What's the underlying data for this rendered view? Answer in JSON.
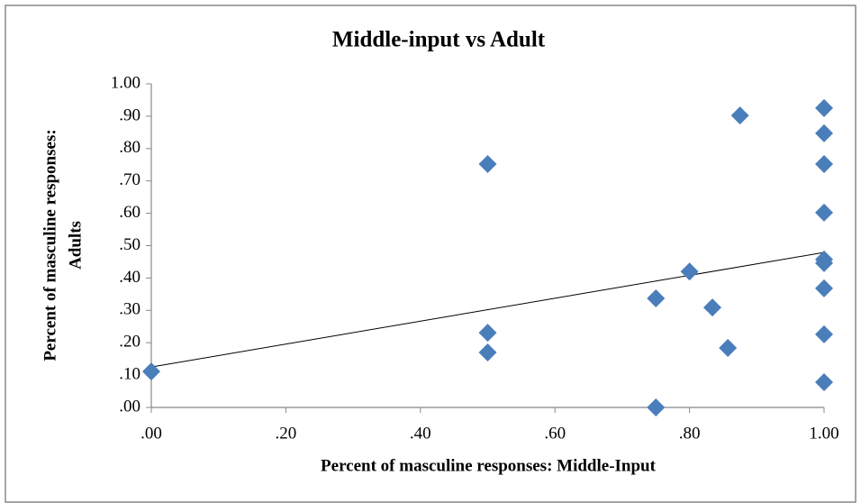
{
  "chart_data": {
    "type": "scatter",
    "title": "Middle-input vs Adult",
    "x_label": "Percent of masculine responses: Middle-Input",
    "y_label": [
      "Percent of masculine responses:",
      "Adults"
    ],
    "color": "#4a7ebb",
    "x": [
      0,
      0.5,
      0.5,
      0.5,
      0.75,
      0.75,
      0.8,
      0.834,
      0.857,
      0.875,
      1,
      1,
      1,
      1,
      1,
      1,
      1,
      1,
      1
    ],
    "values": [
      0.111,
      0.752,
      0.231,
      0.17,
      0.337,
      0,
      0.42,
      0.309,
      0.184,
      0.902,
      0.925,
      0.847,
      0.752,
      0.602,
      0.457,
      0.446,
      0.368,
      0.226,
      0.078
    ],
    "trendline": {
      "intercept": 0.125,
      "slope": 0.354
    },
    "xlim": [
      0,
      1
    ],
    "ylim": [
      0,
      1
    ],
    "xticks": [
      {
        "value": 0,
        "label": ".00"
      },
      {
        "value": 0.2,
        "label": ".20"
      },
      {
        "value": 0.4,
        "label": ".40"
      },
      {
        "value": 0.6,
        "label": ".60"
      },
      {
        "value": 0.8,
        "label": ".80"
      },
      {
        "value": 1,
        "label": "1.00"
      }
    ],
    "yticks": [
      {
        "value": 0,
        "label": ".00"
      },
      {
        "value": 0.1,
        "label": ".10"
      },
      {
        "value": 0.2,
        "label": ".20"
      },
      {
        "value": 0.3,
        "label": ".30"
      },
      {
        "value": 0.4,
        "label": ".40"
      },
      {
        "value": 0.5,
        "label": ".50"
      },
      {
        "value": 0.6,
        "label": ".60"
      },
      {
        "value": 0.7,
        "label": ".70"
      },
      {
        "value": 0.8,
        "label": ".80"
      },
      {
        "value": 0.9,
        "label": ".90"
      },
      {
        "value": 1,
        "label": "1.00"
      }
    ]
  }
}
